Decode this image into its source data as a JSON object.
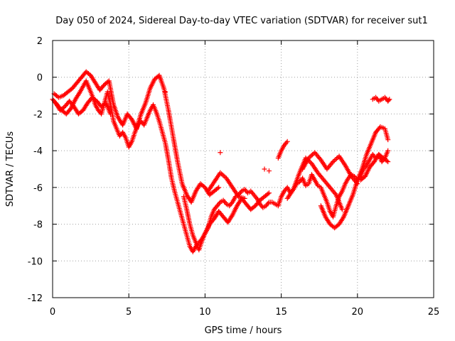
{
  "chart_data": {
    "type": "scatter",
    "title": "Day 050 of 2024, Sidereal Day-to-day VTEC variation (SDTVAR) for receiver sut1",
    "xlabel": "GPS time / hours",
    "ylabel": "SDTVAR / TECUs",
    "xlim": [
      0,
      25
    ],
    "ylim": [
      -12,
      2
    ],
    "xticks": [
      "0",
      "5",
      "10",
      "15",
      "20",
      "25"
    ],
    "yticks": [
      "2",
      "0",
      "-2",
      "-4",
      "-6",
      "-8",
      "-10",
      "-12"
    ],
    "grid": true,
    "marker": "plus",
    "color": "#ff0000",
    "series": [
      {
        "x": [
          0.0,
          0.3,
          0.6,
          0.9,
          1.2,
          1.5,
          1.8,
          2.0,
          2.2,
          2.4,
          2.6,
          2.8,
          3.0,
          3.2,
          3.4,
          3.6,
          3.8,
          4.0,
          4.2,
          4.4,
          4.6,
          4.8,
          5.0,
          5.2,
          5.4,
          5.6,
          5.8,
          6.0,
          6.2,
          6.4,
          6.6,
          6.8,
          7.0,
          7.2,
          7.4,
          7.6,
          7.8,
          8.0,
          8.2,
          8.4,
          8.6,
          8.8,
          9.0,
          9.2,
          9.4,
          9.6,
          9.8,
          10.0,
          10.2,
          10.4,
          10.6,
          10.8,
          11.0,
          11.2,
          11.4,
          11.6,
          11.8,
          12.0,
          12.2,
          12.4,
          12.6,
          12.8,
          13.0,
          13.2,
          13.4,
          13.6,
          13.8,
          14.0,
          14.2,
          14.4,
          14.6,
          14.8,
          15.0,
          15.2,
          15.4,
          15.6,
          15.8,
          16.0,
          16.2,
          16.4,
          16.6,
          16.8,
          17.0,
          17.2,
          17.4,
          17.6,
          17.8,
          18.0,
          18.2,
          18.4,
          18.6,
          18.8,
          19.0,
          19.2,
          19.4,
          19.6,
          19.8,
          20.0,
          20.2,
          20.4,
          20.6,
          20.8,
          21.0,
          21.2,
          21.4,
          21.6,
          21.8,
          22.0
        ],
        "y": [
          -1.2,
          -1.5,
          -1.8,
          -2.0,
          -1.7,
          -1.2,
          -0.8,
          -0.5,
          -0.2,
          -0.6,
          -1.0,
          -1.5,
          -1.8,
          -2.0,
          -1.4,
          -0.8,
          -1.5,
          -2.4,
          -2.8,
          -3.2,
          -3.0,
          -3.3,
          -3.8,
          -3.5,
          -3.0,
          -2.6,
          -2.4,
          -2.6,
          -2.2,
          -1.8,
          -1.5,
          -1.9,
          -2.4,
          -3.0,
          -3.6,
          -4.5,
          -5.5,
          -6.2,
          -6.8,
          -7.4,
          -8.0,
          -8.6,
          -9.2,
          -9.5,
          -9.2,
          -9.0,
          -8.8,
          -8.5,
          -8.2,
          -7.6,
          -7.2,
          -7.0,
          -6.8,
          -6.7,
          -6.9,
          -7.0,
          -6.8,
          -6.5,
          -6.4,
          -6.2,
          -6.1,
          -6.3,
          -6.2,
          -6.4,
          -6.6,
          -6.9,
          -7.1,
          -7.0,
          -6.8,
          -6.8,
          -6.9,
          -7.0,
          -6.5,
          -6.2,
          -6.0,
          -6.3,
          -6.1,
          -5.8,
          -5.7,
          -5.5,
          -5.9,
          -5.8,
          -5.3,
          -5.6,
          -5.9,
          -6.0,
          -6.4,
          -6.8,
          -7.3,
          -7.6,
          -7.0,
          -6.5,
          -6.2,
          -5.8,
          -5.5,
          -5.3,
          -5.4,
          -5.6,
          -5.4,
          -5.0,
          -4.8,
          -4.5,
          -4.2,
          -4.4,
          -4.2,
          -4.6,
          -4.4,
          -4.0
        ]
      },
      {
        "x": [
          0.1,
          0.4,
          0.7,
          1.0,
          1.3,
          1.6,
          1.9,
          2.2,
          2.5,
          2.8,
          3.1,
          3.4,
          3.7,
          4.0,
          4.3,
          4.6,
          4.9,
          5.2,
          5.5,
          5.8,
          6.1,
          6.4,
          6.7,
          7.0,
          7.3,
          7.6,
          7.9,
          8.2,
          8.5,
          8.8,
          9.1,
          9.4,
          9.7,
          10.0,
          10.3,
          10.6,
          10.9
        ],
        "y": [
          -0.9,
          -1.1,
          -1.0,
          -0.8,
          -0.6,
          -0.3,
          0.0,
          0.3,
          0.1,
          -0.3,
          -0.7,
          -0.4,
          -0.2,
          -1.5,
          -2.2,
          -2.6,
          -2.0,
          -2.3,
          -2.8,
          -2.0,
          -1.4,
          -0.6,
          -0.1,
          0.1,
          -0.6,
          -1.8,
          -3.2,
          -4.6,
          -5.8,
          -6.4,
          -6.8,
          -6.2,
          -5.8,
          -6.0,
          -6.4,
          -6.2,
          -6.0
        ]
      },
      {
        "x": [
          0.2,
          0.5,
          0.8,
          1.1,
          1.4,
          1.7,
          2.0,
          2.3,
          2.6,
          2.9,
          3.2,
          3.5,
          3.8
        ],
        "y": [
          -1.4,
          -1.8,
          -1.6,
          -1.3,
          -1.6,
          -2.0,
          -1.8,
          -1.4,
          -1.1,
          -1.3,
          -1.6,
          -1.4,
          -2.0
        ]
      },
      {
        "x": [
          8.6,
          8.8,
          9.0,
          9.2,
          9.4,
          9.6,
          9.8,
          10.0,
          10.3,
          10.6,
          10.9,
          11.2,
          11.5,
          11.8,
          12.1,
          12.4,
          12.7,
          13.0,
          13.3,
          13.6,
          13.9,
          14.2
        ],
        "y": [
          -6.5,
          -7.2,
          -8.0,
          -8.6,
          -9.0,
          -9.4,
          -8.9,
          -8.5,
          -8.0,
          -7.7,
          -7.3,
          -7.6,
          -7.9,
          -7.5,
          -7.0,
          -6.6,
          -6.9,
          -7.2,
          -7.0,
          -6.7,
          -6.5,
          -6.3
        ]
      },
      {
        "x": [
          10.2,
          10.6,
          11.0,
          11.4,
          11.8,
          12.2,
          12.6
        ],
        "y": [
          -6.2,
          -5.7,
          -5.2,
          -5.5,
          -6.0,
          -6.5,
          -6.6
        ]
      },
      {
        "x": [
          14.8,
          15.0,
          15.2,
          15.4
        ],
        "y": [
          -4.4,
          -4.0,
          -3.7,
          -3.5
        ]
      },
      {
        "x": [
          15.4,
          15.8,
          16.2,
          16.6,
          17.0,
          17.4,
          17.8,
          18.2,
          18.6,
          19.0
        ],
        "y": [
          -6.6,
          -6.1,
          -5.2,
          -4.4,
          -4.7,
          -5.2,
          -5.6,
          -6.0,
          -6.4,
          -7.2
        ]
      },
      {
        "x": [
          16.4,
          16.8,
          17.2,
          17.6,
          18.0,
          18.4,
          18.8,
          19.2,
          19.6,
          20.0
        ],
        "y": [
          -5.0,
          -4.4,
          -4.1,
          -4.5,
          -5.0,
          -4.6,
          -4.3,
          -4.8,
          -5.4,
          -5.8
        ]
      },
      {
        "x": [
          17.6,
          17.9,
          18.2,
          18.5,
          18.8,
          19.1,
          19.4,
          19.7,
          20.0,
          20.3,
          20.6,
          20.9,
          21.2,
          21.5,
          21.8,
          22.0
        ],
        "y": [
          -7.0,
          -7.6,
          -8.0,
          -8.2,
          -8.0,
          -7.6,
          -7.0,
          -6.4,
          -5.6,
          -5.0,
          -4.2,
          -3.6,
          -3.0,
          -2.7,
          -2.8,
          -3.4
        ]
      },
      {
        "x": [
          20.2,
          20.5,
          20.8,
          21.1,
          21.4,
          21.7,
          22.0
        ],
        "y": [
          -5.6,
          -5.4,
          -4.9,
          -4.6,
          -4.2,
          -4.4,
          -4.6
        ]
      },
      {
        "x": [
          21.0,
          21.2,
          21.4,
          21.6,
          21.8,
          22.0,
          22.1
        ],
        "y": [
          -1.2,
          -1.1,
          -1.3,
          -1.2,
          -1.1,
          -1.3,
          -1.2
        ]
      },
      {
        "x": [
          11.0,
          13.9,
          14.2,
          7.4
        ],
        "y": [
          -4.1,
          -5.0,
          -5.1,
          -0.8
        ]
      }
    ]
  }
}
